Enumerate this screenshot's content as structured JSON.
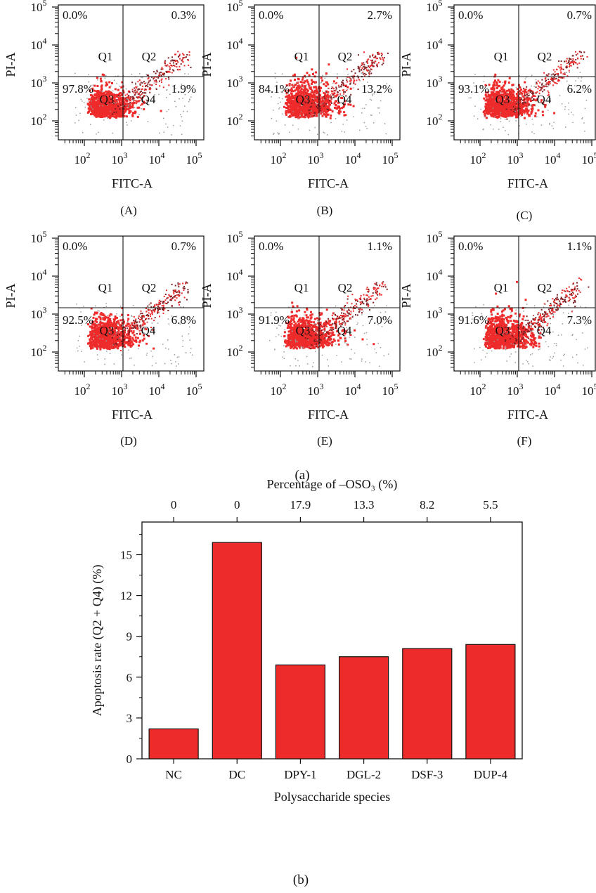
{
  "figure_labels": {
    "part_a": "(a)",
    "part_b": "(b)"
  },
  "flow_panels": [
    {
      "label": "(A)",
      "q1": "0.0%",
      "q2": "0.3%",
      "q3": "97.8%",
      "q4": "1.9%"
    },
    {
      "label": "(B)",
      "q1": "0.0%",
      "q2": "2.7%",
      "q3": "84.1%",
      "q4": "13.2%"
    },
    {
      "label": "(C)",
      "q1": "0.0%",
      "q2": "0.7%",
      "q3": "93.1%",
      "q4": "6.2%"
    },
    {
      "label": "(D)",
      "q1": "0.0%",
      "q2": "0.7%",
      "q3": "92.5%",
      "q4": "6.8%"
    },
    {
      "label": "(E)",
      "q1": "0.0%",
      "q2": "1.1%",
      "q3": "91.9%",
      "q4": "7.0%"
    },
    {
      "label": "(F)",
      "q1": "0.0%",
      "q2": "1.1%",
      "q3": "91.6%",
      "q4": "7.3%"
    }
  ],
  "flow_axes": {
    "xlabel": "FITC-A",
    "ylabel": "PI-A",
    "x_ticks": [
      "10^2",
      "10^3",
      "10^4",
      "10^5"
    ],
    "y_ticks": [
      "10^2",
      "10^3",
      "10^4",
      "10^5"
    ],
    "quadrant_names": [
      "Q1",
      "Q2",
      "Q3",
      "Q4"
    ],
    "scale": "log"
  },
  "chart_data": {
    "type": "bar",
    "categories": [
      "NC",
      "DC",
      "DPY-1",
      "DGL-2",
      "DSF-3",
      "DUP-4"
    ],
    "values": [
      2.2,
      15.9,
      6.9,
      7.5,
      8.1,
      8.4
    ],
    "top_axis_values": [
      "0",
      "0",
      "17.9",
      "13.3",
      "8.2",
      "5.5"
    ],
    "top_axis_label": "Percentage of –OSO₃ (%)",
    "xlabel": "Polysaccharide species",
    "ylabel": "Apoptosis rate (Q2 + Q4) (%)",
    "ylim": [
      0,
      17.4
    ],
    "yticks": [
      0,
      3,
      6,
      9,
      12,
      15
    ],
    "bar_color": "#ee2b2b",
    "grid": false
  }
}
